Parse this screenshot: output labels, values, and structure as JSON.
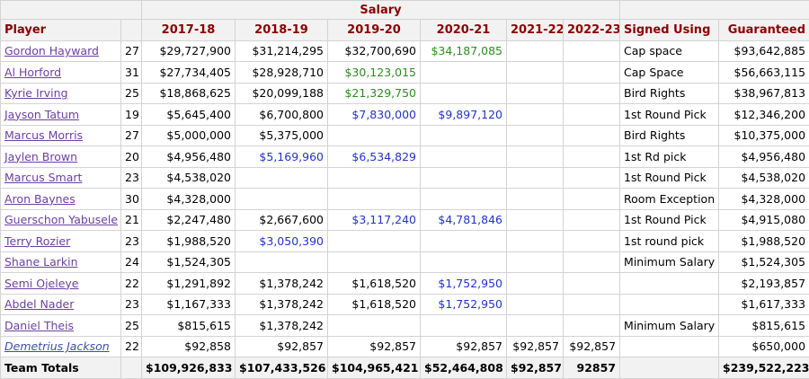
{
  "header": {
    "salary_group": "Salary",
    "columns": [
      "Player",
      "",
      "2017-18",
      "2018-19",
      "2019-20",
      "2020-21",
      "2021-22",
      "2022-23",
      "Signed Using",
      "Guaranteed"
    ]
  },
  "colors": {
    "header_text": "#8b0000",
    "option_green": "#2e8b20",
    "option_blue": "#2233cc",
    "link_purple": "#6b3fa0"
  },
  "rows": [
    {
      "player": "Gordon Hayward",
      "age": "27",
      "s1": "$29,727,900",
      "s2": "$31,214,295",
      "s3": "$32,700,690",
      "s4": "$34,187,085",
      "s5": "",
      "s6": "",
      "signed": "Cap space",
      "guaranteed": "$93,642,885",
      "c3": "black",
      "c4": "green"
    },
    {
      "player": "Al Horford",
      "age": "31",
      "s1": "$27,734,405",
      "s2": "$28,928,710",
      "s3": "$30,123,015",
      "s4": "",
      "s5": "",
      "s6": "",
      "signed": "Cap Space",
      "guaranteed": "$56,663,115",
      "c3": "green",
      "c4": "black"
    },
    {
      "player": "Kyrie Irving",
      "age": "25",
      "s1": "$18,868,625",
      "s2": "$20,099,188",
      "s3": "$21,329,750",
      "s4": "",
      "s5": "",
      "s6": "",
      "signed": "Bird Rights",
      "guaranteed": "$38,967,813",
      "c3": "green",
      "c4": "black"
    },
    {
      "player": "Jayson Tatum",
      "age": "19",
      "s1": "$5,645,400",
      "s2": "$6,700,800",
      "s3": "$7,830,000",
      "s4": "$9,897,120",
      "s5": "",
      "s6": "",
      "signed": "1st Round Pick",
      "guaranteed": "$12,346,200",
      "c3": "blue",
      "c4": "blue"
    },
    {
      "player": "Marcus Morris",
      "age": "27",
      "s1": "$5,000,000",
      "s2": "$5,375,000",
      "s3": "",
      "s4": "",
      "s5": "",
      "s6": "",
      "signed": "Bird Rights",
      "guaranteed": "$10,375,000",
      "c3": "black",
      "c4": "black"
    },
    {
      "player": "Jaylen Brown",
      "age": "20",
      "s1": "$4,956,480",
      "s2": "$5,169,960",
      "s3": "$6,534,829",
      "s4": "",
      "s5": "",
      "s6": "",
      "signed": "1st Rd pick",
      "guaranteed": "$4,956,480",
      "c2": "blue",
      "c3": "blue",
      "c4": "black"
    },
    {
      "player": "Marcus Smart",
      "age": "23",
      "s1": "$4,538,020",
      "s2": "",
      "s3": "",
      "s4": "",
      "s5": "",
      "s6": "",
      "signed": "1st Round Pick",
      "guaranteed": "$4,538,020",
      "c3": "black",
      "c4": "black"
    },
    {
      "player": "Aron Baynes",
      "age": "30",
      "s1": "$4,328,000",
      "s2": "",
      "s3": "",
      "s4": "",
      "s5": "",
      "s6": "",
      "signed": "Room Exception",
      "guaranteed": "$4,328,000",
      "c3": "black",
      "c4": "black"
    },
    {
      "player": "Guerschon Yabusele",
      "age": "21",
      "s1": "$2,247,480",
      "s2": "$2,667,600",
      "s3": "$3,117,240",
      "s4": "$4,781,846",
      "s5": "",
      "s6": "",
      "signed": "1st Round Pick",
      "guaranteed": "$4,915,080",
      "c3": "blue",
      "c4": "blue"
    },
    {
      "player": "Terry Rozier",
      "age": "23",
      "s1": "$1,988,520",
      "s2": "$3,050,390",
      "s3": "",
      "s4": "",
      "s5": "",
      "s6": "",
      "signed": "1st round pick",
      "guaranteed": "$1,988,520",
      "c2": "blue",
      "c3": "black",
      "c4": "black"
    },
    {
      "player": "Shane Larkin",
      "age": "24",
      "s1": "$1,524,305",
      "s2": "",
      "s3": "",
      "s4": "",
      "s5": "",
      "s6": "",
      "signed": "Minimum Salary",
      "guaranteed": "$1,524,305",
      "c3": "black",
      "c4": "black"
    },
    {
      "player": "Semi Ojeleye",
      "age": "22",
      "s1": "$1,291,892",
      "s2": "$1,378,242",
      "s3": "$1,618,520",
      "s4": "$1,752,950",
      "s5": "",
      "s6": "",
      "signed": "",
      "guaranteed": "$2,193,857",
      "c3": "black",
      "c4": "blue"
    },
    {
      "player": "Abdel Nader",
      "age": "23",
      "s1": "$1,167,333",
      "s2": "$1,378,242",
      "s3": "$1,618,520",
      "s4": "$1,752,950",
      "s5": "",
      "s6": "",
      "signed": "",
      "guaranteed": "$1,617,333",
      "c3": "black",
      "c4": "blue"
    },
    {
      "player": "Daniel Theis",
      "age": "25",
      "s1": "$815,615",
      "s2": "$1,378,242",
      "s3": "",
      "s4": "",
      "s5": "",
      "s6": "",
      "signed": "Minimum Salary",
      "guaranteed": "$815,615",
      "c3": "black",
      "c4": "black"
    },
    {
      "player": "Demetrius Jackson",
      "age": "22",
      "s1": "$92,858",
      "s2": "$92,857",
      "s3": "$92,857",
      "s4": "$92,857",
      "s5": "$92,857",
      "s6": "$92,857",
      "signed": "",
      "guaranteed": "$650,000",
      "c3": "black",
      "c4": "black",
      "italic": true
    }
  ],
  "totals": {
    "label": "Team Totals",
    "s1": "$109,926,833",
    "s2": "$107,433,526",
    "s3": "$104,965,421",
    "s4": "$52,464,808",
    "s5": "$92,857",
    "s6": "92857",
    "guaranteed": "$239,522,223"
  }
}
